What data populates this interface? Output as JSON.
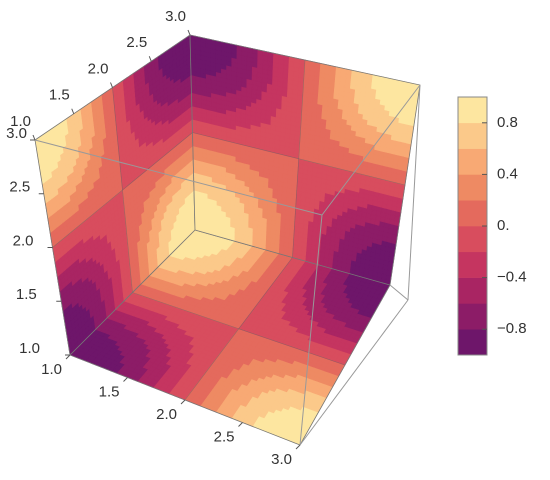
{
  "chart_data": {
    "type": "contour3d",
    "xlim": [
      1,
      3
    ],
    "ylim": [
      1,
      3
    ],
    "zlim": [
      1,
      3
    ],
    "xticks": [
      {
        "value": 1,
        "label": "1.0"
      },
      {
        "value": 1.5,
        "label": "1.5"
      },
      {
        "value": 2,
        "label": "2.0"
      },
      {
        "value": 2.5,
        "label": "2.5"
      },
      {
        "value": 3,
        "label": "3.0"
      }
    ],
    "yticks": [
      {
        "value": 1,
        "label": "1.0"
      },
      {
        "value": 1.5,
        "label": "1.5"
      },
      {
        "value": 2,
        "label": "2.0"
      },
      {
        "value": 2.5,
        "label": "2.5"
      },
      {
        "value": 3,
        "label": "3.0"
      }
    ],
    "zticks": [
      {
        "value": 1,
        "label": "1.0"
      },
      {
        "value": 1.5,
        "label": "1.5"
      },
      {
        "value": 2,
        "label": "2.0"
      },
      {
        "value": 2.5,
        "label": "2.5"
      },
      {
        "value": 3,
        "label": "3.0"
      }
    ],
    "colorbar": {
      "lim": [
        -1,
        1
      ],
      "ticks": [
        {
          "value": -0.8,
          "label": "−0.8"
        },
        {
          "value": -0.4,
          "label": "−0.4"
        },
        {
          "value": 0,
          "label": "0."
        },
        0.4,
        0.8
      ],
      "colors": [
        "#6e166a",
        "#8c1c67",
        "#a92563",
        "#c53560",
        "#d84d5e",
        "#e46a5d",
        "#ee8a63",
        "#f8a974",
        "#fbc98a",
        "#fde6a0"
      ]
    }
  }
}
